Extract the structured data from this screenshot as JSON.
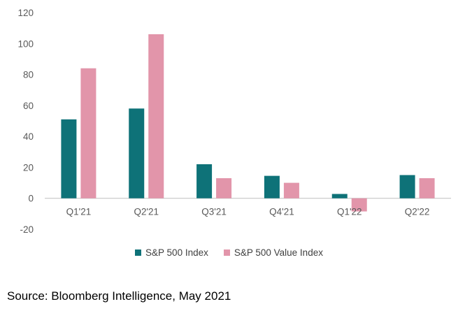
{
  "colors": {
    "sp500": "#0e7278",
    "value": "#e295aa",
    "axis": "#bfbfbf",
    "text": "#595959"
  },
  "chart_data": {
    "type": "bar",
    "categories": [
      "Q1'21",
      "Q2'21",
      "Q3'21",
      "Q4'21",
      "Q1'22",
      "Q2'22"
    ],
    "series": [
      {
        "name": "S&P 500 Index",
        "values": [
          51,
          58,
          22,
          14.5,
          2.8,
          15
        ]
      },
      {
        "name": "S&P 500 Value Index",
        "values": [
          84,
          106,
          13,
          10,
          -8.5,
          13
        ]
      }
    ],
    "ylim": [
      -20,
      120
    ],
    "yticks": [
      -20,
      0,
      20,
      40,
      60,
      80,
      100,
      120
    ],
    "grid": false,
    "legend": "bottom"
  },
  "source": "Source: Bloomberg Intelligence, May 2021"
}
